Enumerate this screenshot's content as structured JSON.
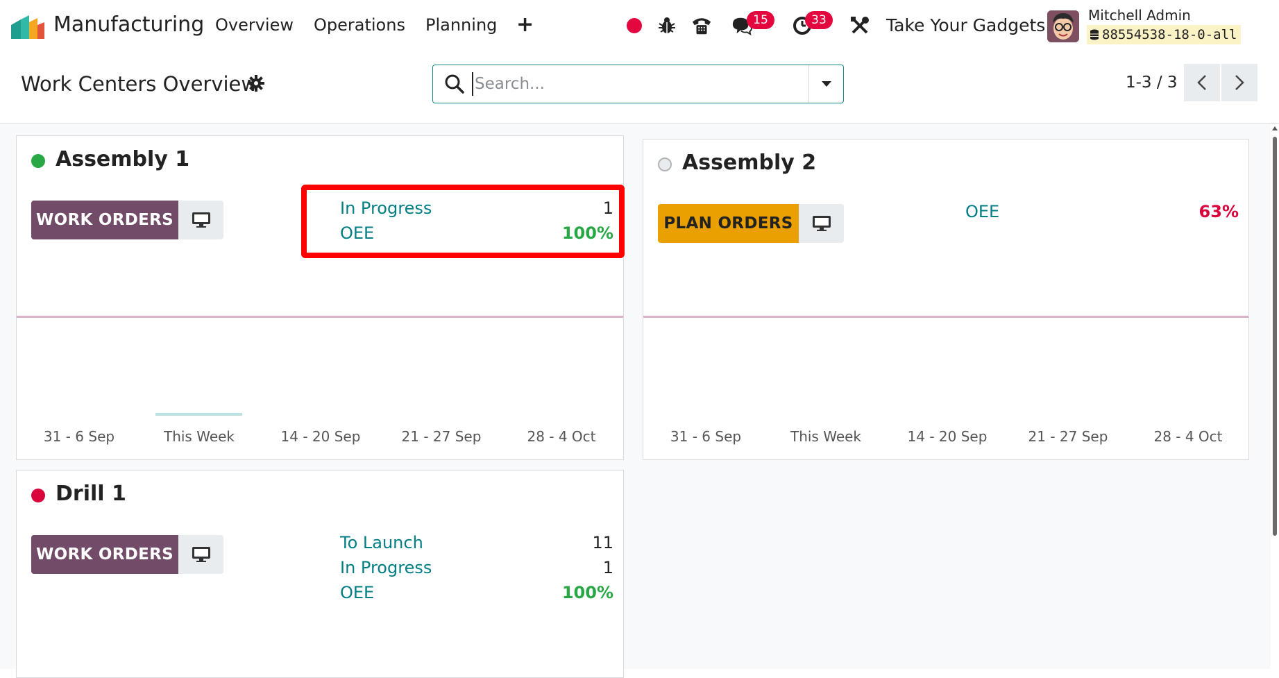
{
  "navbar": {
    "app_name": "Manufacturing",
    "menu": [
      "Overview",
      "Operations",
      "Planning"
    ],
    "plus_label": "+",
    "chat_badge": "15",
    "activity_badge": "33",
    "company": "Take Your Gadgets",
    "user_name": "Mitchell Admin",
    "database": "88554538-18-0-all"
  },
  "control": {
    "title": "Work Centers Overview",
    "search_placeholder": "Search...",
    "pager": "1-3 / 3"
  },
  "cards": [
    {
      "title": "Assembly 1",
      "status_color": "#28a745",
      "button": "WORK ORDERS",
      "stats": [
        {
          "label": "In Progress",
          "value": "1"
        },
        {
          "label": "OEE",
          "value": "100%"
        }
      ],
      "ticks": [
        "31 - 6 Sep",
        "This Week",
        "14 - 20 Sep",
        "21 - 27 Sep",
        "28 - 4 Oct"
      ]
    },
    {
      "title": "Assembly 2",
      "status_color": "#e9ecef",
      "button": "PLAN ORDERS",
      "stats": [
        {
          "label": "OEE",
          "value": "63%"
        }
      ],
      "ticks": [
        "31 - 6 Sep",
        "This Week",
        "14 - 20 Sep",
        "21 - 27 Sep",
        "28 - 4 Oct"
      ]
    },
    {
      "title": "Drill 1",
      "status_color": "#d9043b",
      "button": "WORK ORDERS",
      "stats": [
        {
          "label": "To Launch",
          "value": "11"
        },
        {
          "label": "In Progress",
          "value": "1"
        },
        {
          "label": "OEE",
          "value": "100%"
        }
      ]
    }
  ],
  "colors": {
    "primary": "#714b67",
    "warning": "#e9a000",
    "accent": "#017e84",
    "success": "#28a745",
    "danger": "#d9043b",
    "highlight": "#ff0000"
  }
}
